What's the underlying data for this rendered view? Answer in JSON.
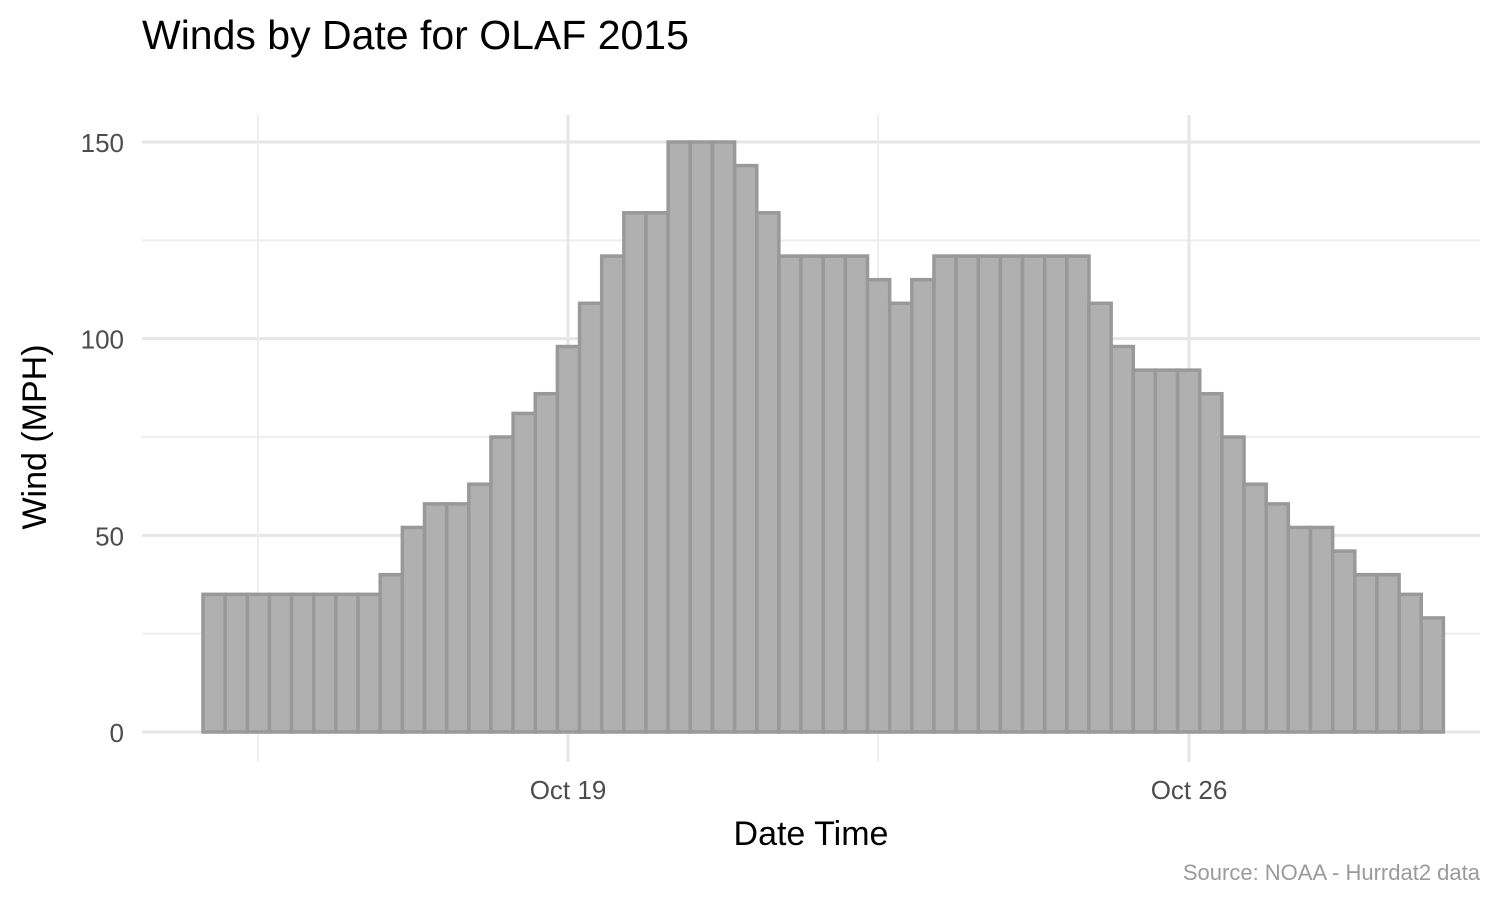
{
  "chart_data": {
    "type": "bar",
    "title": "Winds by Date for OLAF 2015",
    "xlabel": "Date Time",
    "ylabel": "Wind (MPH)",
    "caption": "Source: NOAA - Hurrdat2 data",
    "ylim": [
      0,
      155
    ],
    "y_ticks": [
      "0",
      "50",
      "100",
      "150"
    ],
    "x_ticks": [
      "Oct 19",
      "Oct 26"
    ],
    "grid": true,
    "bar_fill": "#b0b0b0",
    "bar_stroke": "#999999",
    "values": [
      35,
      35,
      35,
      35,
      35,
      35,
      35,
      35,
      40,
      52,
      58,
      58,
      63,
      75,
      81,
      86,
      98,
      109,
      121,
      132,
      132,
      150,
      150,
      150,
      144,
      132,
      121,
      121,
      121,
      121,
      115,
      109,
      115,
      121,
      121,
      121,
      121,
      121,
      121,
      121,
      109,
      98,
      92,
      92,
      92,
      86,
      75,
      63,
      58,
      52,
      52,
      46,
      40,
      40,
      35,
      29
    ]
  }
}
